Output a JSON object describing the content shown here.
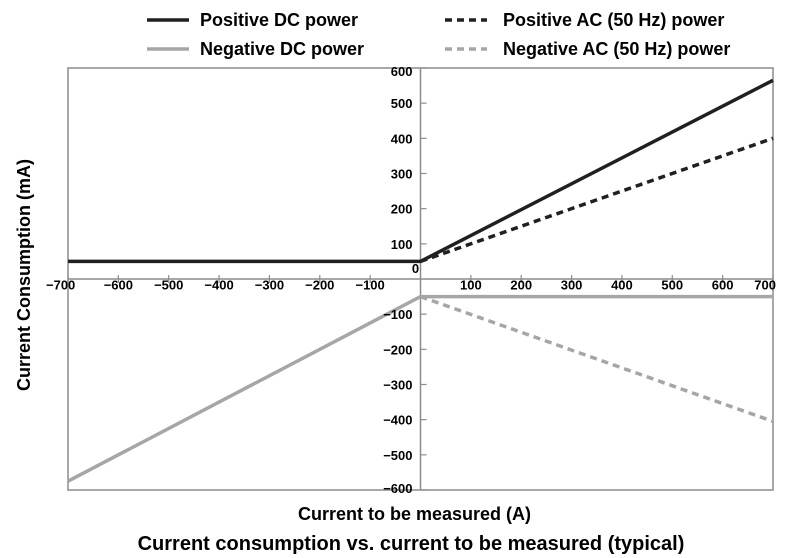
{
  "chart_data": {
    "type": "line",
    "title": "Current consumption vs. current to be measured (typical)",
    "xlabel": "Current to be measured (A)",
    "ylabel": "Current Consumption (mA)",
    "xlim": [
      -700,
      700
    ],
    "ylim": [
      -600,
      600
    ],
    "x_ticks": [
      -700,
      -600,
      -500,
      -400,
      -300,
      -200,
      -100,
      0,
      100,
      200,
      300,
      400,
      500,
      600,
      700
    ],
    "y_ticks": [
      600,
      500,
      400,
      300,
      200,
      100,
      0,
      -100,
      -200,
      -300,
      -400,
      -500,
      -600
    ],
    "x_tick_labels": [
      "−700",
      "−600",
      "−500",
      "−400",
      "−300",
      "−200",
      "−100",
      "0",
      "100",
      "200",
      "300",
      "400",
      "500",
      "600",
      "700"
    ],
    "y_tick_labels": [
      "600",
      "500",
      "400",
      "300",
      "200",
      "100",
      "0",
      "−100",
      "−200",
      "−300",
      "−400",
      "−500",
      "−600"
    ],
    "grid": false,
    "legend_position": "top",
    "series": [
      {
        "name": "Positive DC power",
        "color": "#231f20",
        "style": "solid",
        "x": [
          -700,
          0,
          700
        ],
        "y": [
          50,
          50,
          565
        ]
      },
      {
        "name": "Positive AC (50 Hz) power",
        "color": "#231f20",
        "style": "dashed",
        "x": [
          0,
          700
        ],
        "y": [
          50,
          400
        ]
      },
      {
        "name": "Negative DC power",
        "color": "#a6a6a6",
        "style": "solid",
        "x": [
          -700,
          0,
          700
        ],
        "y": [
          -575,
          -50,
          -50
        ]
      },
      {
        "name": "Negative AC (50 Hz) power",
        "color": "#a6a6a6",
        "style": "dashed",
        "x": [
          0,
          700
        ],
        "y": [
          -50,
          -405
        ]
      }
    ]
  }
}
